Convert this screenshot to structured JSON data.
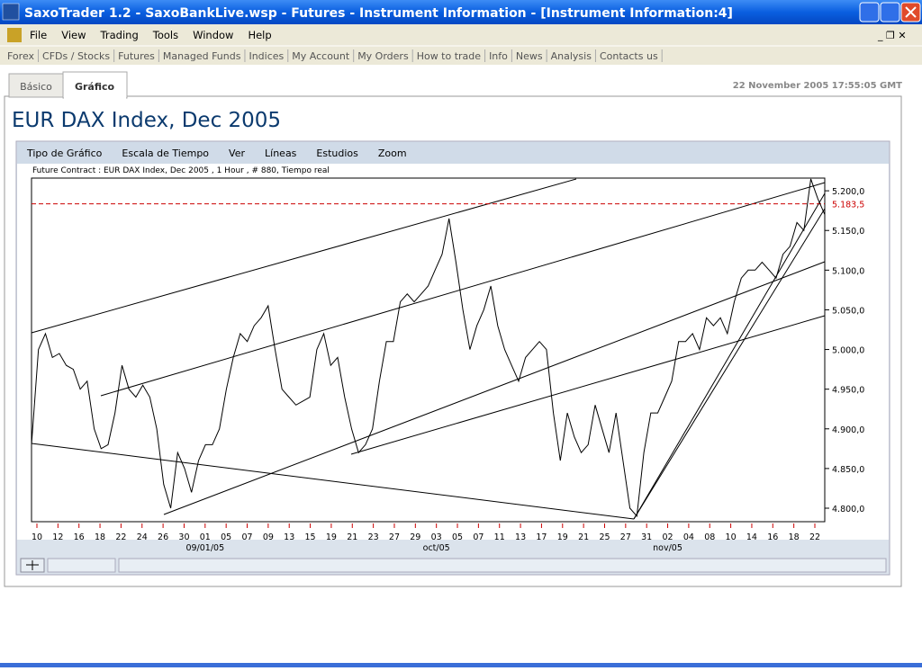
{
  "window": {
    "title": "SaxoTrader 1.2 - SaxoBankLive.wsp - Futures - Instrument Information - [Instrument Information:4]"
  },
  "menu": [
    "File",
    "View",
    "Trading",
    "Tools",
    "Window",
    "Help"
  ],
  "toolbar": [
    "Forex",
    "CFDs / Stocks",
    "Futures",
    "Managed Funds",
    "Indices",
    "My Account",
    "My Orders",
    "How to trade",
    "Info",
    "News",
    "Analysis",
    "Contacts us"
  ],
  "tabs": [
    "Básico",
    "Gráfico"
  ],
  "timestamp": "22 November 2005 17:55:05 GMT",
  "heading": "EUR DAX Index, Dec 2005",
  "chart_menu": [
    "Tipo de Gráfico",
    "Escala de Tiempo",
    "Ver",
    "Líneas",
    "Estudios",
    "Zoom"
  ],
  "chart_data": {
    "type": "line",
    "subtitle": "Future Contract : EUR DAX Index, Dec 2005 , 1 Hour , # 880, Tiempo real",
    "x_labels": [
      "10",
      "12",
      "16",
      "18",
      "22",
      "24",
      "26",
      "30",
      "01",
      "05",
      "07",
      "09",
      "13",
      "15",
      "19",
      "21",
      "23",
      "27",
      "29",
      "03",
      "05",
      "07",
      "11",
      "13",
      "17",
      "19",
      "21",
      "25",
      "27",
      "31",
      "02",
      "04",
      "08",
      "10",
      "14",
      "16",
      "18",
      "22"
    ],
    "month_labels": [
      "09/01/05",
      "oct/05",
      "nov/05"
    ],
    "series": [
      {
        "color": "#000000",
        "values": [
          4880,
          5000,
          5020,
          4990,
          4995,
          4980,
          4975,
          4950,
          4960,
          4900,
          4875,
          4880,
          4920,
          4980,
          4950,
          4940,
          4955,
          4940,
          4900,
          4830,
          4800,
          4870,
          4850,
          4820,
          4860,
          4880,
          4880,
          4900,
          4950,
          4990,
          5020,
          5010,
          5030,
          5040,
          5055,
          5000,
          4950,
          4940,
          4930,
          4935,
          4940,
          5000,
          5020,
          4980,
          4990,
          4940,
          4900,
          4870,
          4880,
          4900,
          4960,
          5010,
          5010,
          5060,
          5070,
          5060,
          5070,
          5080,
          5100,
          5120,
          5165,
          5110,
          5050,
          5000,
          5030,
          5050,
          5080,
          5030,
          5000,
          4980,
          4960,
          4990,
          5000,
          5010,
          5000,
          4920,
          4860,
          4920,
          4890,
          4870,
          4880,
          4930,
          4900,
          4870,
          4920,
          4860,
          4800,
          4790,
          4870,
          4920,
          4920,
          4940,
          4960,
          5010,
          5010,
          5020,
          5000,
          5040,
          5030,
          5040,
          5020,
          5060,
          5090,
          5100,
          5100,
          5110,
          5100,
          5090,
          5120,
          5130,
          5160,
          5150,
          5215,
          5190,
          5170
        ]
      }
    ],
    "ylim": [
      4783,
      5216
    ],
    "yticks": [
      {
        "value": 4800,
        "label": "4.800,0"
      },
      {
        "value": 4850,
        "label": "4.850,0"
      },
      {
        "value": 4900,
        "label": "4.900,0"
      },
      {
        "value": 4950,
        "label": "4.950,0"
      },
      {
        "value": 5000,
        "label": "5.000,0"
      },
      {
        "value": 5050,
        "label": "5.050,0"
      },
      {
        "value": 5100,
        "label": "5.100,0"
      },
      {
        "value": 5150,
        "label": "5.150,0"
      },
      {
        "value": 5200,
        "label": "5.200,0"
      }
    ],
    "reference": {
      "value": 5183.5,
      "label": "5.183,5",
      "color": "#cc0000"
    }
  }
}
